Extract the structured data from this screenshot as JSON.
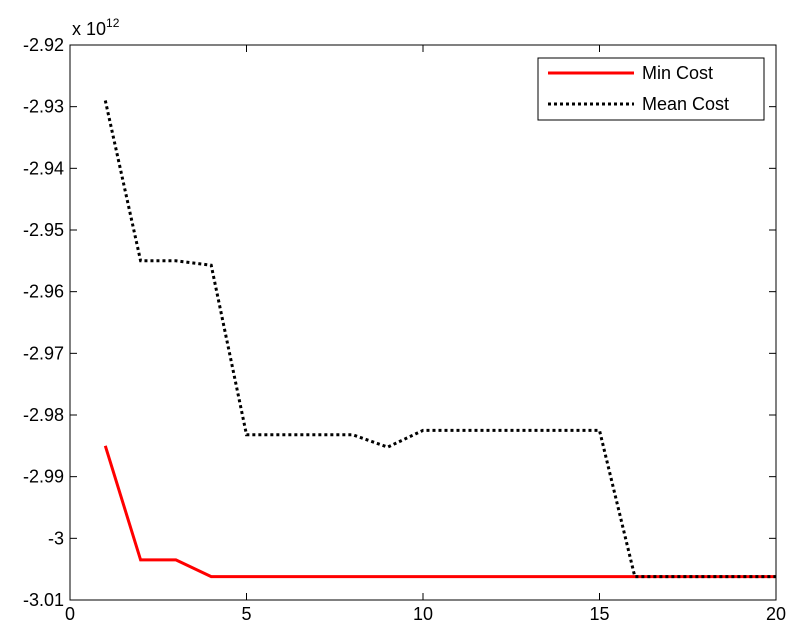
{
  "chart_data": {
    "type": "line",
    "xlim": [
      0,
      20
    ],
    "ylim": [
      -3.01,
      -2.92
    ],
    "y_multiplier": {
      "base": "x 10",
      "exponent": "12"
    },
    "xticks": [
      0,
      5,
      10,
      15,
      20
    ],
    "xtick_labels": [
      "0",
      "5",
      "10",
      "15",
      "20"
    ],
    "yticks": [
      -2.92,
      -2.93,
      -2.94,
      -2.95,
      -2.96,
      -2.97,
      -2.98,
      -2.99,
      -3.0,
      -3.01
    ],
    "ytick_labels": [
      "-2.92",
      "-2.93",
      "-2.94",
      "-2.95",
      "-2.96",
      "-2.97",
      "-2.98",
      "-2.99",
      "-3",
      "-3.01"
    ],
    "grid": false,
    "legend_position": "top-right",
    "series": [
      {
        "name": "Min Cost",
        "color": "#ff0000",
        "style": "solid",
        "x": [
          1,
          2,
          3,
          4,
          5,
          6,
          7,
          8,
          9,
          10,
          11,
          12,
          13,
          14,
          15,
          16,
          17,
          18,
          19,
          20
        ],
        "values": [
          -2.985,
          -3.0035,
          -3.0035,
          -3.0062,
          -3.0062,
          -3.0062,
          -3.0062,
          -3.0062,
          -3.0062,
          -3.0062,
          -3.0062,
          -3.0062,
          -3.0062,
          -3.0062,
          -3.0062,
          -3.0062,
          -3.0062,
          -3.0062,
          -3.0062,
          -3.0062
        ]
      },
      {
        "name": "Mean Cost",
        "color": "#000000",
        "style": "dotted",
        "x": [
          1,
          2,
          3,
          4,
          5,
          6,
          7,
          8,
          9,
          10,
          11,
          12,
          13,
          14,
          15,
          16,
          17,
          18,
          19,
          20
        ],
        "values": [
          -2.929,
          -2.955,
          -2.955,
          -2.9557,
          -2.9832,
          -2.9832,
          -2.9832,
          -2.9832,
          -2.9852,
          -2.9825,
          -2.9825,
          -2.9825,
          -2.9825,
          -2.9825,
          -2.9825,
          -3.0062,
          -3.0062,
          -3.0062,
          -3.0062,
          -3.0062
        ]
      }
    ]
  }
}
